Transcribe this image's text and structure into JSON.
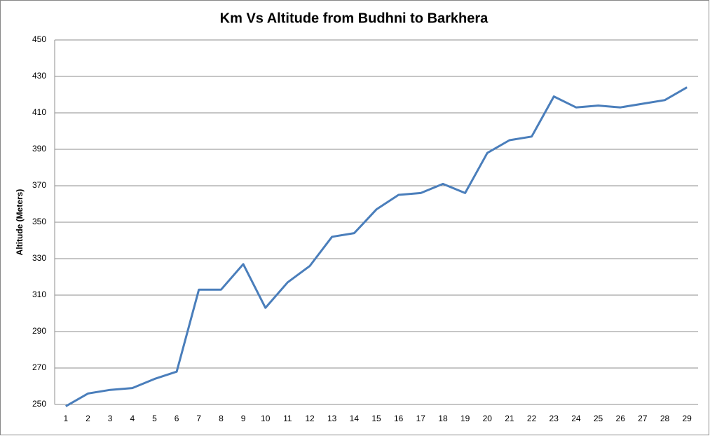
{
  "chart_data": {
    "type": "line",
    "title": "Km Vs Altitude from Budhni to Barkhera",
    "y_label": "Altitude (Meters)",
    "categories": [
      "1",
      "2",
      "3",
      "4",
      "5",
      "6",
      "7",
      "8",
      "9",
      "10",
      "11",
      "12",
      "13",
      "14",
      "15",
      "16",
      "17",
      "18",
      "19",
      "20",
      "21",
      "22",
      "23",
      "24",
      "25",
      "26",
      "27",
      "28",
      "29"
    ],
    "series": [
      {
        "name": "Altitude",
        "color": "#4a7ebb",
        "values": [
          249,
          256,
          258,
          259,
          264,
          268,
          313,
          313,
          327,
          303,
          317,
          326,
          342,
          344,
          357,
          365,
          366,
          371,
          366,
          388,
          395,
          397,
          419,
          413,
          414,
          413,
          415,
          417,
          424
        ]
      }
    ],
    "ylim": [
      250,
      450
    ],
    "yticks": [
      250,
      270,
      290,
      310,
      330,
      350,
      370,
      390,
      410,
      430,
      450
    ],
    "grid": true
  }
}
